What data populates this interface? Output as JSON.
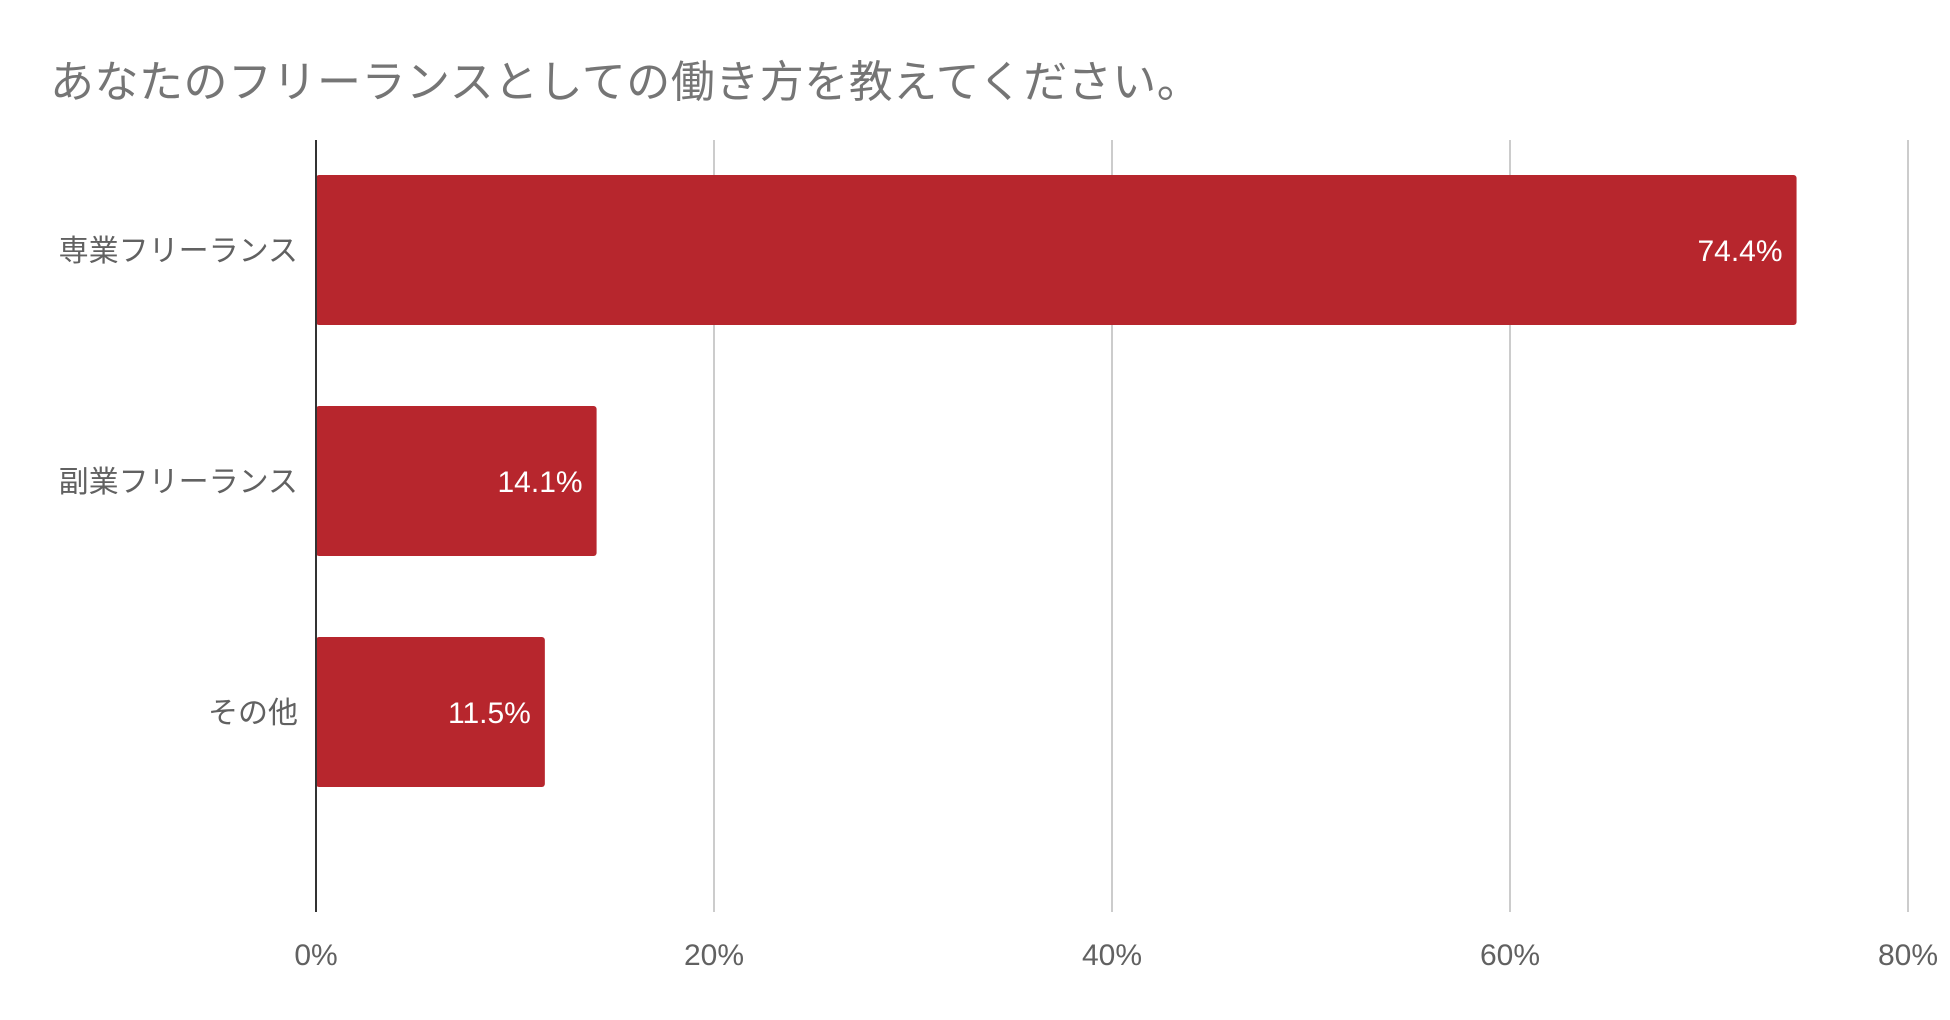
{
  "chart_data": {
    "type": "bar",
    "orientation": "horizontal",
    "title": "あなたのフリーランスとしての働き方を教えてください。",
    "categories": [
      "専業フリーランス",
      "副業フリーランス",
      "その他"
    ],
    "values": [
      74.4,
      14.1,
      11.5
    ],
    "data_labels": [
      "74.4%",
      "14.1%",
      "11.5%"
    ],
    "xlim": [
      0,
      80
    ],
    "xticks": [
      0,
      20,
      40,
      60,
      80
    ],
    "xtick_labels": [
      "0%",
      "20%",
      "40%",
      "60%",
      "80%"
    ],
    "xlabel": "",
    "ylabel": "",
    "grid": true,
    "legend": "none",
    "colors": {
      "bar": "#b7262d",
      "grid": "#cccccc",
      "axis": "#333333",
      "text": "#616161",
      "title": "#757575"
    }
  }
}
